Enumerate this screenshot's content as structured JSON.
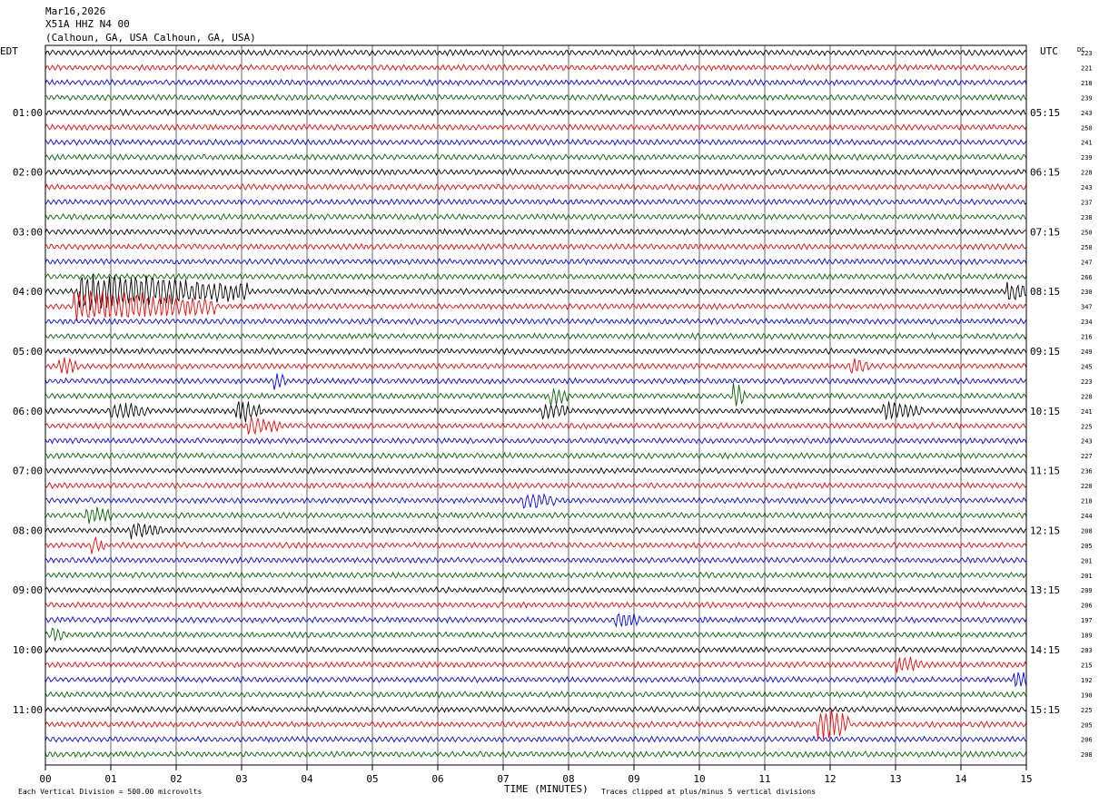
{
  "header": {
    "date": "Mar16,2026",
    "station": "X51A HHZ N4 00",
    "location": "(Calhoun, GA, USA Calhoun, GA, USA)"
  },
  "labels": {
    "left_zone": "EDT",
    "right_zone": "UTC",
    "dc_header": "DC",
    "x_axis_title": "TIME (MINUTES)",
    "scale_note": "Each Vertical Division =  500.00 microvolts",
    "clip_note": "Traces clipped at plus/minus 5 vertical divisions"
  },
  "colors": {
    "trace_cycle": [
      "#000000",
      "#ff0000",
      "#0000ff",
      "#006400"
    ],
    "grid": "#000000",
    "background": "#ffffff"
  },
  "chart_data": {
    "type": "helicorder",
    "x_range_minutes": [
      0,
      15
    ],
    "x_ticks": [
      "00",
      "01",
      "02",
      "03",
      "04",
      "05",
      "06",
      "07",
      "08",
      "09",
      "10",
      "11",
      "12",
      "13",
      "14",
      "15"
    ],
    "trace_count": 48,
    "minutes_per_trace": 15,
    "left_time_labels": [
      {
        "trace": 4,
        "label": "01:00"
      },
      {
        "trace": 8,
        "label": "02:00"
      },
      {
        "trace": 12,
        "label": "03:00"
      },
      {
        "trace": 16,
        "label": "04:00"
      },
      {
        "trace": 20,
        "label": "05:00"
      },
      {
        "trace": 24,
        "label": "06:00"
      },
      {
        "trace": 28,
        "label": "07:00"
      },
      {
        "trace": 32,
        "label": "08:00"
      },
      {
        "trace": 36,
        "label": "09:00"
      },
      {
        "trace": 40,
        "label": "10:00"
      },
      {
        "trace": 44,
        "label": "11:00"
      }
    ],
    "right_time_labels": [
      {
        "trace": 4,
        "label": "05:15"
      },
      {
        "trace": 8,
        "label": "06:15"
      },
      {
        "trace": 12,
        "label": "07:15"
      },
      {
        "trace": 16,
        "label": "08:15"
      },
      {
        "trace": 20,
        "label": "09:15"
      },
      {
        "trace": 24,
        "label": "10:15"
      },
      {
        "trace": 28,
        "label": "11:15"
      },
      {
        "trace": 32,
        "label": "12:15"
      },
      {
        "trace": 36,
        "label": "13:15"
      },
      {
        "trace": 40,
        "label": "14:15"
      },
      {
        "trace": 44,
        "label": "15:15"
      }
    ],
    "dc_values": [
      "223",
      "221",
      "218",
      "239",
      "243",
      "250",
      "241",
      "239",
      "228",
      "243",
      "237",
      "238",
      "250",
      "250",
      "247",
      "266",
      "230",
      "347",
      "234",
      "216",
      "249",
      "245",
      "223",
      "228",
      "241",
      "225",
      "243",
      "227",
      "236",
      "220",
      "218",
      "244",
      "208",
      "205",
      "201",
      "201",
      "209",
      "206",
      "197",
      "189",
      "203",
      "215",
      "192",
      "190",
      "225",
      "205",
      "206",
      "208"
    ],
    "events": [
      {
        "trace": 16,
        "minute": 0.5,
        "duration": 2.6,
        "amplitude": 3.0
      },
      {
        "trace": 17,
        "minute": 0.4,
        "duration": 2.2,
        "amplitude": 2.6
      },
      {
        "trace": 16,
        "minute": 14.7,
        "duration": 0.4,
        "amplitude": 1.5
      },
      {
        "trace": 21,
        "minute": 0.2,
        "duration": 0.3,
        "amplitude": 1.2
      },
      {
        "trace": 22,
        "minute": 3.5,
        "duration": 0.2,
        "amplitude": 1.2
      },
      {
        "trace": 23,
        "minute": 7.7,
        "duration": 0.3,
        "amplitude": 1.4
      },
      {
        "trace": 23,
        "minute": 10.5,
        "duration": 0.2,
        "amplitude": 2.0
      },
      {
        "trace": 24,
        "minute": 1.0,
        "duration": 0.6,
        "amplitude": 1.3
      },
      {
        "trace": 24,
        "minute": 2.9,
        "duration": 0.4,
        "amplitude": 2.0
      },
      {
        "trace": 24,
        "minute": 7.6,
        "duration": 0.4,
        "amplitude": 1.2
      },
      {
        "trace": 24,
        "minute": 12.8,
        "duration": 0.6,
        "amplitude": 1.3
      },
      {
        "trace": 21,
        "minute": 12.3,
        "duration": 0.3,
        "amplitude": 1.2
      },
      {
        "trace": 25,
        "minute": 3.1,
        "duration": 0.5,
        "amplitude": 1.1
      },
      {
        "trace": 30,
        "minute": 7.3,
        "duration": 0.5,
        "amplitude": 1.2
      },
      {
        "trace": 31,
        "minute": 0.6,
        "duration": 0.4,
        "amplitude": 1.3
      },
      {
        "trace": 32,
        "minute": 1.3,
        "duration": 0.5,
        "amplitude": 1.1
      },
      {
        "trace": 33,
        "minute": 0.7,
        "duration": 0.2,
        "amplitude": 1.3
      },
      {
        "trace": 38,
        "minute": 8.7,
        "duration": 0.4,
        "amplitude": 1.2
      },
      {
        "trace": 39,
        "minute": 0.1,
        "duration": 0.2,
        "amplitude": 1.0
      },
      {
        "trace": 41,
        "minute": 13.0,
        "duration": 0.4,
        "amplitude": 1.3
      },
      {
        "trace": 42,
        "minute": 14.8,
        "duration": 0.3,
        "amplitude": 1.3
      },
      {
        "trace": 45,
        "minute": 11.8,
        "duration": 0.5,
        "amplitude": 2.8
      }
    ]
  }
}
